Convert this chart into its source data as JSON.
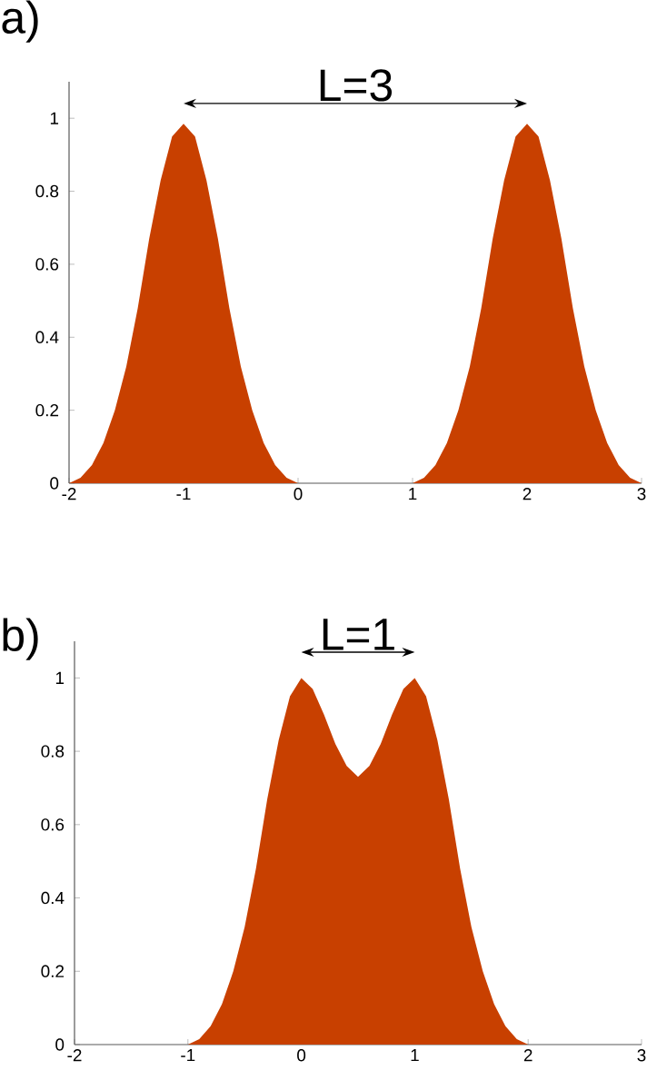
{
  "chart_data": [
    {
      "type": "area",
      "title": "a)",
      "color": "#c84000",
      "xlim": [
        -2,
        3
      ],
      "ylim": [
        0,
        1.1
      ],
      "xticks": [
        -2,
        -1,
        0,
        1,
        2,
        3
      ],
      "yticks": [
        0,
        0.2,
        0.4,
        0.6,
        0.8,
        1
      ],
      "x": [
        -2,
        -1.9,
        -1.8,
        -1.7,
        -1.6,
        -1.5,
        -1.4,
        -1.3,
        -1.2,
        -1.1,
        -1,
        -0.9,
        -0.8,
        -0.7,
        -0.6,
        -0.5,
        -0.4,
        -0.3,
        -0.2,
        -0.1,
        0,
        0.5,
        1,
        1.1,
        1.2,
        1.3,
        1.4,
        1.5,
        1.6,
        1.7,
        1.8,
        1.9,
        2,
        2.1,
        2.2,
        2.3,
        2.4,
        2.5,
        2.6,
        2.7,
        2.8,
        2.9,
        3
      ],
      "values": [
        0,
        0.015,
        0.05,
        0.11,
        0.2,
        0.32,
        0.48,
        0.67,
        0.83,
        0.95,
        0.985,
        0.95,
        0.83,
        0.67,
        0.48,
        0.32,
        0.2,
        0.11,
        0.05,
        0.015,
        0,
        0,
        0,
        0.015,
        0.05,
        0.11,
        0.2,
        0.32,
        0.48,
        0.67,
        0.83,
        0.95,
        0.985,
        0.95,
        0.83,
        0.67,
        0.48,
        0.32,
        0.2,
        0.11,
        0.05,
        0.015,
        0
      ],
      "annotations": [
        "L=3"
      ]
    },
    {
      "type": "area",
      "title": "b)",
      "color": "#c84000",
      "xlim": [
        -2,
        3
      ],
      "ylim": [
        0,
        1.1
      ],
      "xticks": [
        -2,
        -1,
        0,
        1,
        2,
        3
      ],
      "yticks": [
        0,
        0.2,
        0.4,
        0.6,
        0.8,
        1
      ],
      "x": [
        -2,
        -1,
        -0.9,
        -0.8,
        -0.7,
        -0.6,
        -0.5,
        -0.4,
        -0.3,
        -0.2,
        -0.1,
        0,
        0.1,
        0.2,
        0.3,
        0.4,
        0.5,
        0.6,
        0.7,
        0.8,
        0.9,
        1,
        1.1,
        1.2,
        1.3,
        1.4,
        1.5,
        1.6,
        1.7,
        1.8,
        1.9,
        2,
        3
      ],
      "values": [
        0,
        0,
        0.015,
        0.05,
        0.11,
        0.2,
        0.32,
        0.48,
        0.67,
        0.83,
        0.95,
        1.0,
        0.97,
        0.9,
        0.82,
        0.76,
        0.73,
        0.76,
        0.82,
        0.9,
        0.97,
        1.0,
        0.95,
        0.83,
        0.67,
        0.48,
        0.32,
        0.2,
        0.11,
        0.05,
        0.015,
        0,
        0
      ],
      "annotations": [
        "L=1"
      ]
    }
  ]
}
